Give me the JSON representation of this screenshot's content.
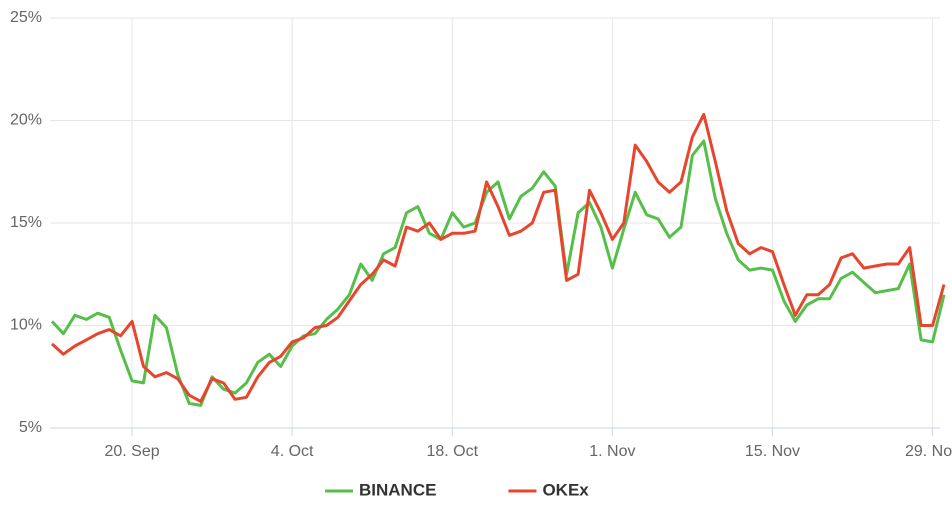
{
  "chart_data": {
    "type": "line",
    "categories": [
      null,
      null,
      null,
      null,
      null,
      null,
      null,
      "20. Sep",
      null,
      null,
      null,
      null,
      null,
      null,
      null,
      null,
      null,
      null,
      null,
      null,
      null,
      "4. Oct",
      null,
      null,
      null,
      null,
      null,
      null,
      null,
      null,
      null,
      null,
      null,
      null,
      null,
      "18. Oct",
      null,
      null,
      null,
      null,
      null,
      null,
      null,
      null,
      null,
      null,
      null,
      null,
      null,
      "1. Nov",
      null,
      null,
      null,
      null,
      null,
      null,
      null,
      null,
      null,
      null,
      null,
      null,
      null,
      "15. Nov",
      null,
      null,
      null,
      null,
      null,
      null,
      null,
      null,
      null,
      null,
      null,
      null,
      null,
      "29. Nov",
      null
    ],
    "series": [
      {
        "name": "BINANCE",
        "color": "#55bf4a",
        "values": [
          10.2,
          9.6,
          10.5,
          10.3,
          10.6,
          10.4,
          8.8,
          7.3,
          7.2,
          10.5,
          9.9,
          7.6,
          6.2,
          6.1,
          7.5,
          6.9,
          6.7,
          7.2,
          8.2,
          8.6,
          8.0,
          9.0,
          9.5,
          9.6,
          10.3,
          10.8,
          11.5,
          13.0,
          12.2,
          13.5,
          13.8,
          15.5,
          15.8,
          14.5,
          14.2,
          15.5,
          14.8,
          15.0,
          16.5,
          17.0,
          15.2,
          16.3,
          16.7,
          17.5,
          16.8,
          12.5,
          15.5,
          16.0,
          14.8,
          12.8,
          14.7,
          16.5,
          15.4,
          15.2,
          14.3,
          14.8,
          18.3,
          19.0,
          16.2,
          14.5,
          13.2,
          12.7,
          12.8,
          12.7,
          11.2,
          10.2,
          11.0,
          11.3,
          11.3,
          12.3,
          12.6,
          12.1,
          11.6,
          11.7,
          11.8,
          13.0,
          9.3,
          9.2,
          11.5
        ]
      },
      {
        "name": "OKEx",
        "color": "#e8452f",
        "values": [
          9.1,
          8.6,
          9.0,
          9.3,
          9.6,
          9.8,
          9.5,
          10.2,
          8.0,
          7.5,
          7.7,
          7.4,
          6.6,
          6.3,
          7.4,
          7.2,
          6.4,
          6.5,
          7.5,
          8.2,
          8.5,
          9.2,
          9.4,
          9.9,
          10.0,
          10.4,
          11.2,
          12.0,
          12.5,
          13.2,
          12.9,
          14.8,
          14.6,
          15.0,
          14.2,
          14.5,
          14.5,
          14.6,
          17.0,
          15.8,
          14.4,
          14.6,
          15.0,
          16.5,
          16.6,
          12.2,
          12.5,
          16.6,
          15.5,
          14.2,
          15.0,
          18.8,
          18.0,
          17.0,
          16.5,
          17.0,
          19.2,
          20.3,
          18.0,
          15.6,
          14.0,
          13.5,
          13.8,
          13.6,
          12.0,
          10.5,
          11.5,
          11.5,
          12.0,
          13.3,
          13.5,
          12.8,
          12.9,
          13.0,
          13.0,
          13.8,
          10.0,
          10.0,
          12.0
        ]
      }
    ],
    "ylim": [
      5,
      25
    ],
    "yticks": [
      {
        "value": 5,
        "label": "5%"
      },
      {
        "value": 10,
        "label": "10%"
      },
      {
        "value": 15,
        "label": "15%"
      },
      {
        "value": 20,
        "label": "20%"
      },
      {
        "value": 25,
        "label": "25%"
      }
    ],
    "grid": true
  }
}
